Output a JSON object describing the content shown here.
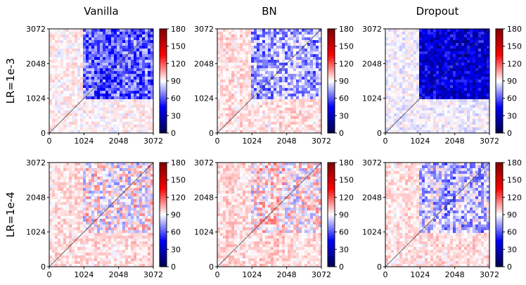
{
  "chart_data": {
    "type": "heatmap",
    "colormap": "seismic",
    "column_titles": [
      "Vanilla",
      "BN",
      "Dropout"
    ],
    "row_titles": [
      "LR=1e-3",
      "LR=1e-4"
    ],
    "axis_ticks": [
      "0",
      "1024",
      "2048",
      "3072"
    ],
    "axis_range": [
      0,
      3072
    ],
    "colorbar": {
      "ticks": [
        "0",
        "30",
        "60",
        "90",
        "120",
        "150",
        "180"
      ],
      "range": [
        0,
        180
      ]
    },
    "panels": [
      {
        "row": "LR=1e-3",
        "column": "Vanilla",
        "block_start": 1024,
        "block_mean": 62,
        "base_mean": 92
      },
      {
        "row": "LR=1e-3",
        "column": "BN",
        "block_start": 1024,
        "block_mean": 74,
        "base_mean": 95
      },
      {
        "row": "LR=1e-3",
        "column": "Dropout",
        "block_start": 1024,
        "block_mean": 35,
        "base_mean": 88
      },
      {
        "row": "LR=1e-4",
        "column": "Vanilla",
        "block_start": 1024,
        "block_mean": 92,
        "base_mean": 96
      },
      {
        "row": "LR=1e-4",
        "column": "BN",
        "block_start": 1024,
        "block_mean": 94,
        "base_mean": 97
      },
      {
        "row": "LR=1e-4",
        "column": "Dropout",
        "block_start": 1024,
        "block_mean": 78,
        "base_mean": 95
      }
    ]
  }
}
